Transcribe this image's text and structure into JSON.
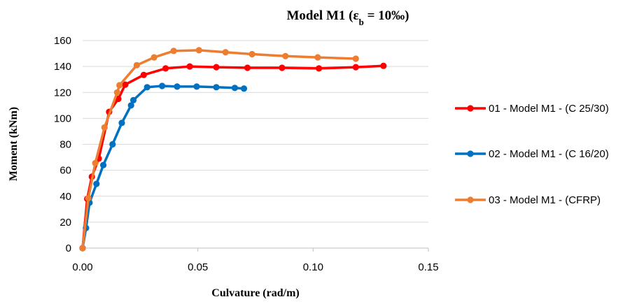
{
  "chart_data": {
    "type": "line",
    "title": "Model M1 (",
    "title_symbol": "ε",
    "title_subscript": "b",
    "title_suffix": " = 10‰)",
    "xlabel": "Culvature (rad/m)",
    "ylabel": "Moment (kNm)",
    "xlim": [
      0,
      0.15
    ],
    "ylim": [
      0,
      160
    ],
    "x_ticks": [
      "0.00",
      "0.05",
      "0.10",
      "0.15"
    ],
    "x_tick_values": [
      0,
      0.05,
      0.1,
      0.15
    ],
    "y_ticks": [
      "0",
      "20",
      "40",
      "60",
      "80",
      "100",
      "120",
      "140",
      "160"
    ],
    "y_tick_values": [
      0,
      20,
      40,
      60,
      80,
      100,
      120,
      140,
      160
    ],
    "grid": "horizontal",
    "legend_position": "right",
    "series": [
      {
        "name": "01 - Model M1 - (C 25/30)",
        "color": "#ff0000",
        "points": [
          [
            0,
            0
          ],
          [
            0.002,
            38
          ],
          [
            0.004,
            55
          ],
          [
            0.007,
            69
          ],
          [
            0.0115,
            105
          ],
          [
            0.0155,
            115
          ],
          [
            0.0185,
            126
          ],
          [
            0.0265,
            133.5
          ],
          [
            0.036,
            138.5
          ],
          [
            0.0465,
            140
          ],
          [
            0.058,
            139.5
          ],
          [
            0.0715,
            139
          ],
          [
            0.0865,
            139
          ],
          [
            0.1025,
            138.5
          ],
          [
            0.1185,
            139.5
          ],
          [
            0.1305,
            140.5
          ]
        ]
      },
      {
        "name": "02 - Model M1 - (C 16/20)",
        "color": "#0070c0",
        "points": [
          [
            0,
            0
          ],
          [
            0.0015,
            15.5
          ],
          [
            0.003,
            35
          ],
          [
            0.006,
            49.5
          ],
          [
            0.009,
            64
          ],
          [
            0.013,
            80
          ],
          [
            0.017,
            96.5
          ],
          [
            0.021,
            110
          ],
          [
            0.022,
            114
          ],
          [
            0.028,
            124
          ],
          [
            0.0345,
            125
          ],
          [
            0.041,
            124.5
          ],
          [
            0.0495,
            124.5
          ],
          [
            0.058,
            124
          ],
          [
            0.066,
            123.5
          ],
          [
            0.07,
            123
          ]
        ]
      },
      {
        "name": "03 - Model M1 - (CFRP)",
        "color": "#ed7d31",
        "points": [
          [
            0,
            0
          ],
          [
            0.0025,
            38.5
          ],
          [
            0.0055,
            65.5
          ],
          [
            0.0095,
            93
          ],
          [
            0.015,
            120
          ],
          [
            0.016,
            125.5
          ],
          [
            0.0235,
            141
          ],
          [
            0.031,
            147
          ],
          [
            0.0395,
            152
          ],
          [
            0.0505,
            152.5
          ],
          [
            0.062,
            151
          ],
          [
            0.0735,
            149.5
          ],
          [
            0.088,
            148
          ],
          [
            0.102,
            147
          ],
          [
            0.1185,
            146
          ]
        ]
      }
    ]
  }
}
